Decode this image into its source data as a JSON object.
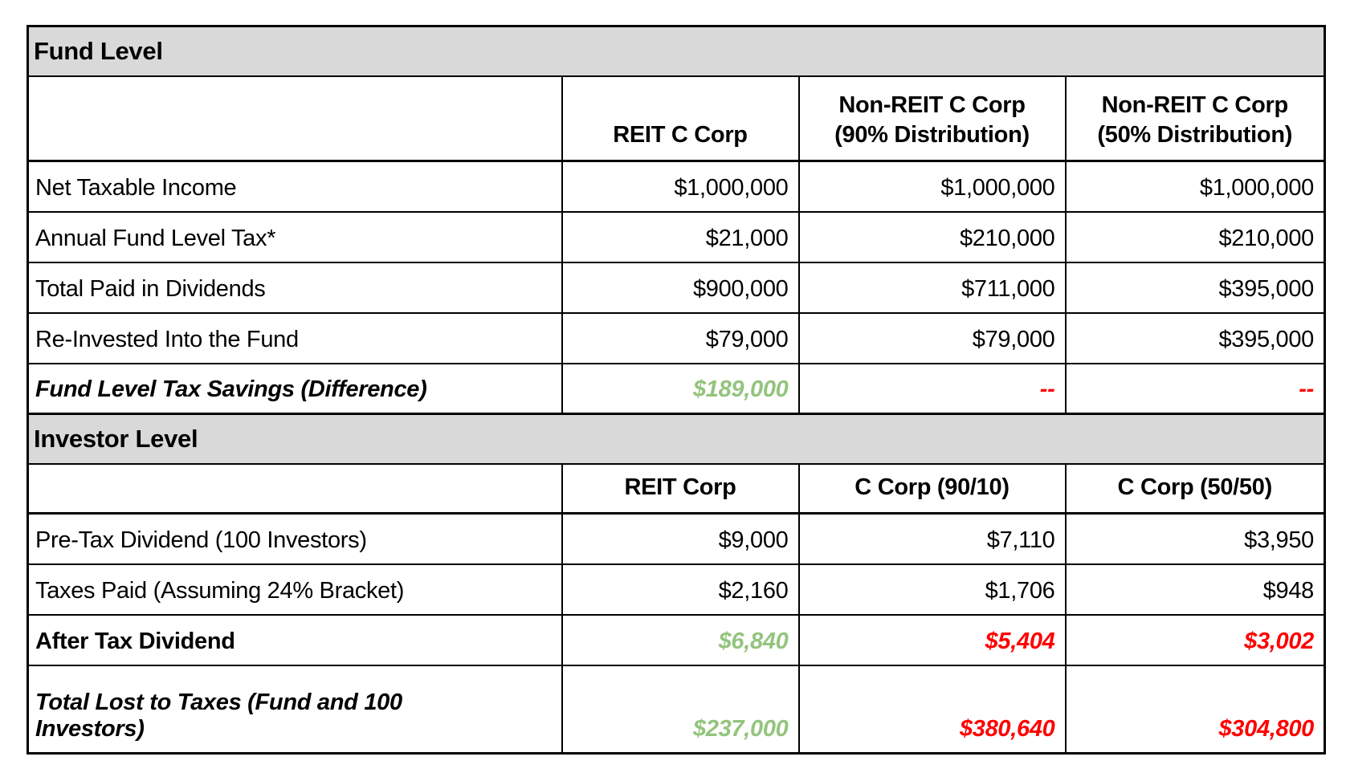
{
  "colors": {
    "section_header_bg": "#d9d9d9",
    "positive_value": "#93c47d",
    "negative_value": "#ff0000",
    "border": "#000000"
  },
  "chart_data": {
    "type": "table",
    "title": "REIT C Corp vs Non-REIT C Corp tax comparison",
    "sections": [
      {
        "title": "Fund Level",
        "columns": [
          {
            "lines": [
              "REIT C Corp"
            ]
          },
          {
            "lines": [
              "Non-REIT C Corp",
              "(90% Distribution)"
            ]
          },
          {
            "lines": [
              "Non-REIT C Corp",
              "(50% Distribution)"
            ]
          }
        ],
        "rows": [
          {
            "label": "Net Taxable Income",
            "values": [
              "$1,000,000",
              "$1,000,000",
              "$1,000,000"
            ]
          },
          {
            "label": "Annual Fund Level Tax*",
            "values": [
              "$21,000",
              "$210,000",
              "$210,000"
            ]
          },
          {
            "label": "Total Paid in Dividends",
            "values": [
              "$900,000",
              "$711,000",
              "$395,000"
            ]
          },
          {
            "label": "Re-Invested Into the Fund",
            "values": [
              "$79,000",
              "$79,000",
              "$395,000"
            ]
          },
          {
            "label": "Fund Level Tax Savings (Difference)",
            "values": [
              "$189,000",
              "--",
              "--"
            ],
            "value_styles": [
              "positive",
              "negative",
              "negative"
            ],
            "emphasis": true
          }
        ]
      },
      {
        "title": "Investor Level",
        "columns": [
          {
            "lines": [
              "REIT Corp"
            ]
          },
          {
            "lines": [
              "C Corp (90/10)"
            ]
          },
          {
            "lines": [
              "C Corp (50/50)"
            ]
          }
        ],
        "rows": [
          {
            "label": "Pre-Tax Dividend (100 Investors)",
            "values": [
              "$9,000",
              "$7,110",
              "$3,950"
            ]
          },
          {
            "label": "Taxes Paid (Assuming 24% Bracket)",
            "values": [
              "$2,160",
              "$1,706",
              "$948"
            ]
          },
          {
            "label": "After Tax Dividend",
            "values": [
              "$6,840",
              "$5,404",
              "$3,002"
            ],
            "value_styles": [
              "positive",
              "negative",
              "negative"
            ],
            "emphasis": true
          },
          {
            "label": "Total Lost to Taxes (Fund and 100 Investors)",
            "values": [
              "$237,000",
              "$380,640",
              "$304,800"
            ],
            "value_styles": [
              "positive",
              "negative",
              "negative"
            ],
            "emphasis": true
          }
        ]
      }
    ]
  }
}
